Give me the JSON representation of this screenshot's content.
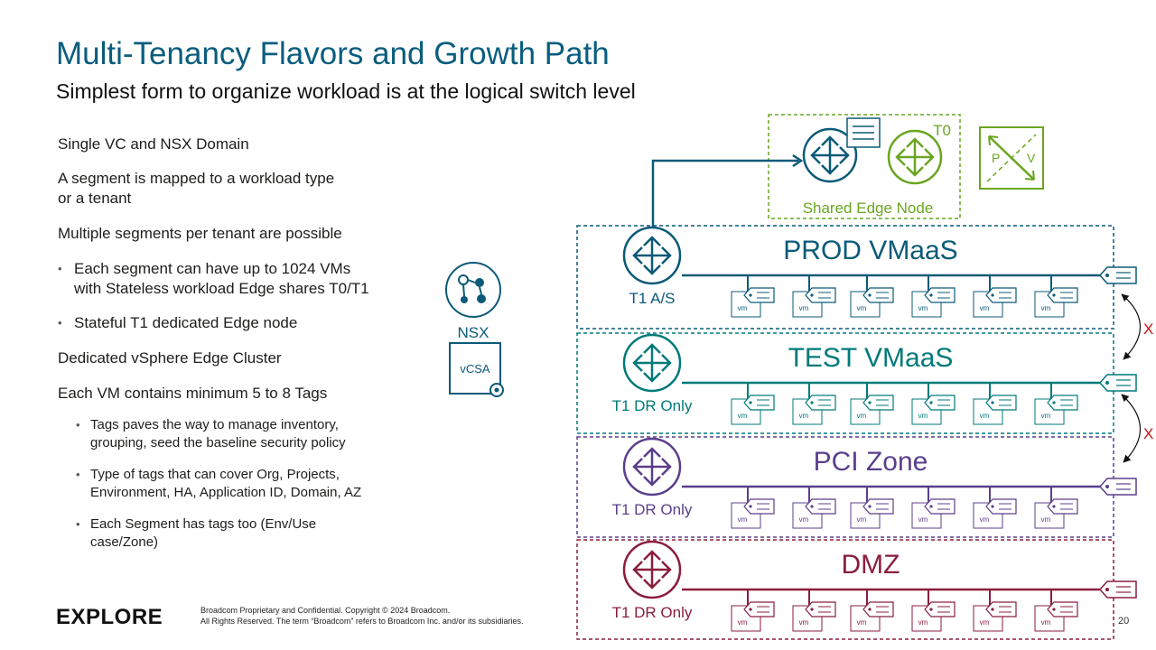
{
  "title": "Multi-Tenancy Flavors and Growth Path",
  "subtitle": "Simplest form to organize workload is at the logical switch level",
  "bullets": {
    "b1": "Single VC and NSX Domain",
    "b2_line1": "A segment is mapped to a workload type",
    "b2_line2": "or a tenant",
    "b3": "Multiple segments per tenant are possible",
    "b4_line1": "Each segment can have up to 1024 VMs",
    "b4_line2": "with Stateless workload Edge shares T0/T1",
    "b5": "Stateful T1 dedicated Edge node",
    "b6": "Dedicated vSphere Edge Cluster",
    "b7": "Each VM contains minimum 5 to 8 Tags",
    "b8_line1": "Tags paves the way to manage inventory,",
    "b8_line2": "grouping, seed the baseline security policy",
    "b9_line1": "Type of tags that can cover Org, Projects,",
    "b9_line2": "Environment, HA, Application ID, Domain, AZ",
    "b10_line1": "Each Segment has tags too (Env/Use",
    "b10_line2": "case/Zone)"
  },
  "diagram": {
    "nsx_label": "NSX",
    "vcsa_label": "vCSA",
    "t0_label": "T0",
    "shared_edge_label": "Shared Edge Node",
    "pv_p": "P",
    "pv_v": "V",
    "vm_label": "vm",
    "x_mark": "X",
    "zones": [
      {
        "name": "PROD VMaaS",
        "router": "T1 A/S",
        "color": "#0b5a78"
      },
      {
        "name": "TEST VMaaS",
        "router": "T1 DR Only",
        "color": "#007a7a"
      },
      {
        "name": "PCI Zone",
        "router": "T1 DR Only",
        "color": "#5a3f8c"
      },
      {
        "name": "DMZ",
        "router": "T1 DR Only",
        "color": "#8a1e3c"
      }
    ],
    "colors": {
      "shared_edge": "#6aa521",
      "nsx": "#0b5a78"
    }
  },
  "footer": {
    "logo": "EXPLORE",
    "line1": "Broadcom Proprietary and Confidential. Copyright © 2024 Broadcom.",
    "line2": "All Rights Reserved. The term “Broadcom” refers to Broadcom Inc. and/or its subsidiaries.",
    "page": "20"
  }
}
